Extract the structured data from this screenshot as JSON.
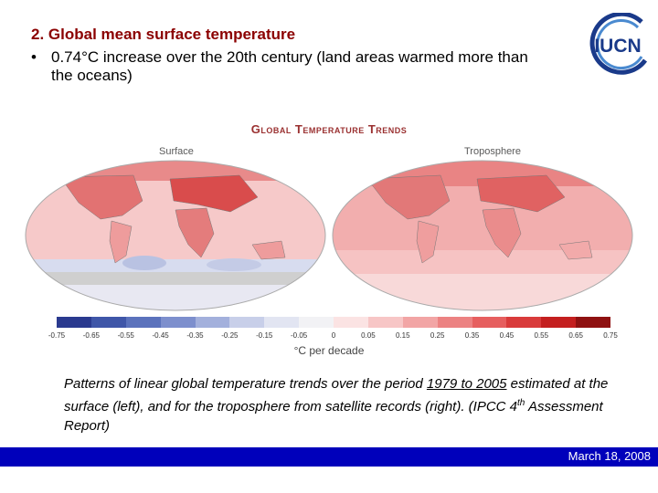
{
  "slide": {
    "title": "2. Global mean surface temperature",
    "bullet_marker": "•",
    "bullet": "0.74°C increase over the 20th century (land areas warmed more than the oceans)"
  },
  "logo": {
    "text": "IUCN",
    "brand_color": "#1a3a8a",
    "arc_color": "#4a8ad0"
  },
  "figure": {
    "title": "Global Temperature Trends",
    "left_label": "Surface",
    "right_label": "Troposphere",
    "colorbar": {
      "ticks": [
        "-0.75",
        "-0.65",
        "-0.55",
        "-0.45",
        "-0.35",
        "-0.25",
        "-0.15",
        "-0.05",
        "0",
        "0.05",
        "0.15",
        "0.25",
        "0.35",
        "0.45",
        "0.55",
        "0.65",
        "0.75"
      ],
      "colors": [
        "#2a3a8f",
        "#3f56a8",
        "#5b72bc",
        "#7d8fcd",
        "#a3b0dc",
        "#c8cfe9",
        "#e2e5f2",
        "#f2f2f5",
        "#fbe3e3",
        "#f7c6c6",
        "#f2a5a5",
        "#ec8282",
        "#e65f5f",
        "#d93b3b",
        "#c41f1f",
        "#8f1111"
      ],
      "unit": "°C per decade"
    }
  },
  "caption": {
    "part1": "Patterns of linear global temperature trends over the period ",
    "period": "1979 to 2005",
    "part2": " estimated at the surface (left), and for the troposphere from satellite records (right). (IPCC 4",
    "sup": "th",
    "part3": " Assessment Report)"
  },
  "footer": {
    "date": "March 18, 2008",
    "bar_color": "#0000bb"
  }
}
